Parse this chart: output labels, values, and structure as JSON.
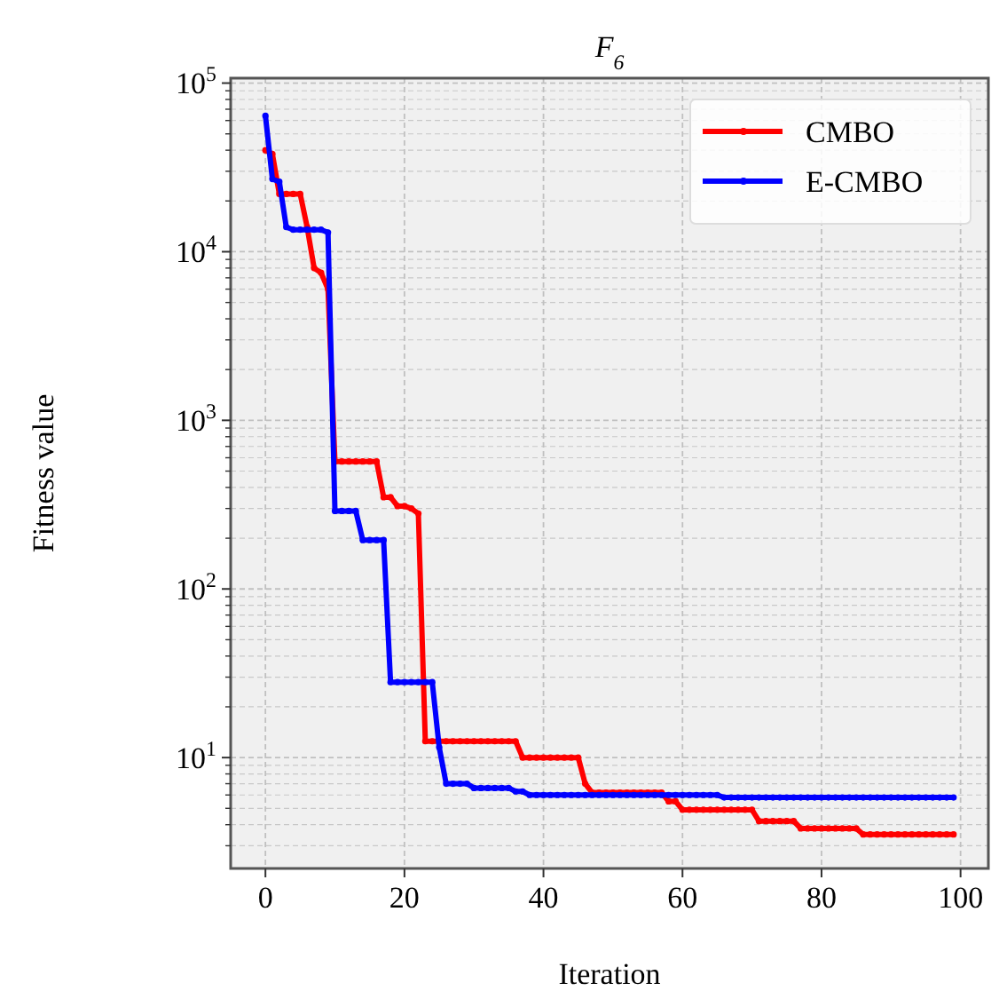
{
  "chart_data": {
    "type": "line",
    "title": "F$_{6}$",
    "xlabel": "Iteration",
    "ylabel": "Fitness value",
    "log": "y",
    "grid": true,
    "legend": "top right",
    "marker": "circle",
    "line_style": "solid",
    "xlim": [
      -5,
      104
    ],
    "xticks": [
      0,
      20,
      40,
      60,
      80,
      100
    ],
    "ylim": [
      2.2,
      107000
    ],
    "yticks": [
      {
        "value": 10,
        "label": "10$^{1}$"
      },
      {
        "value": 100,
        "label": "10$^{2}$"
      },
      {
        "value": 1000,
        "label": "10$^{3}$"
      },
      {
        "value": 10000,
        "label": "10$^{4}$"
      },
      {
        "value": 100000,
        "label": "10$^{5}$"
      }
    ],
    "x": [
      0,
      1,
      2,
      3,
      4,
      5,
      6,
      7,
      8,
      9,
      10,
      11,
      12,
      13,
      14,
      15,
      16,
      17,
      18,
      19,
      20,
      21,
      22,
      23,
      24,
      25,
      26,
      27,
      28,
      29,
      30,
      31,
      32,
      33,
      34,
      35,
      36,
      37,
      38,
      39,
      40,
      41,
      42,
      43,
      44,
      45,
      46,
      47,
      48,
      49,
      50,
      51,
      52,
      53,
      54,
      55,
      56,
      57,
      58,
      59,
      60,
      61,
      62,
      63,
      64,
      65,
      66,
      67,
      68,
      69,
      70,
      71,
      72,
      73,
      74,
      75,
      76,
      77,
      78,
      79,
      80,
      81,
      82,
      83,
      84,
      85,
      86,
      87,
      88,
      89,
      90,
      91,
      92,
      93,
      94,
      95,
      96,
      97,
      98,
      99
    ],
    "series": [
      {
        "name": "CMBO",
        "color": "#ff0000",
        "values": [
          40000,
          38000,
          22000,
          22000,
          22000,
          22000,
          14000,
          8000,
          7500,
          6000,
          570,
          570,
          570,
          570,
          570,
          570,
          570,
          350,
          350,
          310,
          310,
          300,
          280,
          12.5,
          12.5,
          12.5,
          12.5,
          12.5,
          12.5,
          12.5,
          12.5,
          12.5,
          12.5,
          12.5,
          12.5,
          12.5,
          12.5,
          10,
          10,
          10,
          10,
          10,
          10,
          10,
          10,
          10,
          7,
          6.2,
          6.2,
          6.2,
          6.2,
          6.2,
          6.2,
          6.2,
          6.2,
          6.2,
          6.2,
          6.2,
          5.5,
          5.5,
          4.9,
          4.9,
          4.9,
          4.9,
          4.9,
          4.9,
          4.9,
          4.9,
          4.9,
          4.9,
          4.9,
          4.2,
          4.2,
          4.2,
          4.2,
          4.2,
          4.2,
          3.8,
          3.8,
          3.8,
          3.8,
          3.8,
          3.8,
          3.8,
          3.8,
          3.8,
          3.5,
          3.5,
          3.5,
          3.5,
          3.5,
          3.5,
          3.5,
          3.5,
          3.5,
          3.5,
          3.5,
          3.5,
          3.5,
          3.5
        ]
      },
      {
        "name": "E-CMBO",
        "color": "#0000ff",
        "values": [
          64000,
          27000,
          26000,
          14000,
          13500,
          13500,
          13500,
          13500,
          13500,
          13000,
          290,
          290,
          290,
          290,
          195,
          195,
          195,
          195,
          28,
          28,
          28,
          28,
          28,
          28,
          28,
          11.5,
          7,
          7,
          7,
          7,
          6.6,
          6.6,
          6.6,
          6.6,
          6.6,
          6.6,
          6.3,
          6.3,
          6,
          6,
          6,
          6,
          6,
          6,
          6,
          6,
          6,
          6,
          6,
          6,
          6,
          6,
          6,
          6,
          6,
          6,
          6,
          6,
          6,
          6,
          6,
          6,
          6,
          6,
          6,
          6,
          5.8,
          5.8,
          5.8,
          5.8,
          5.8,
          5.8,
          5.8,
          5.8,
          5.8,
          5.8,
          5.8,
          5.8,
          5.8,
          5.8,
          5.8,
          5.8,
          5.8,
          5.8,
          5.8,
          5.8,
          5.8,
          5.8,
          5.8,
          5.8,
          5.8,
          5.8,
          5.8,
          5.8,
          5.8,
          5.8,
          5.8,
          5.8,
          5.8,
          5.8
        ]
      }
    ]
  }
}
